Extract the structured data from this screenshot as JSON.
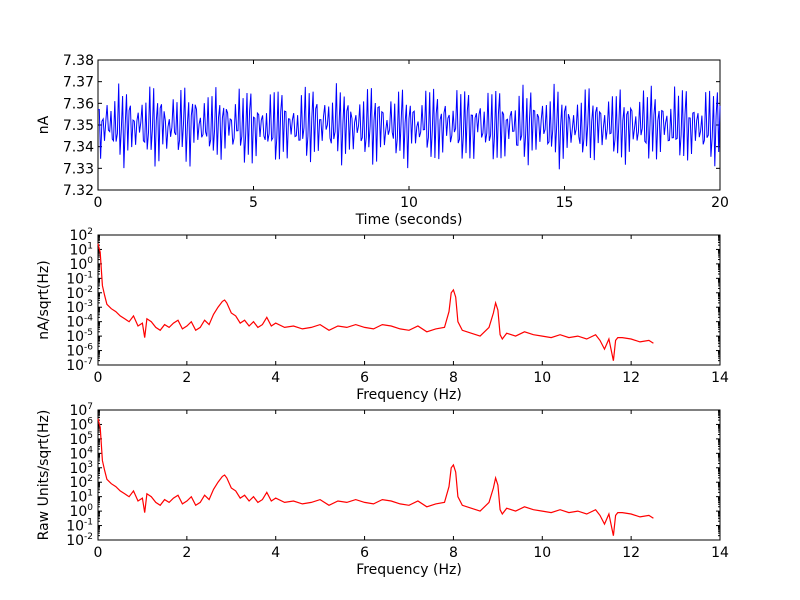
{
  "chart_data": [
    {
      "type": "line",
      "xlabel": "Time (seconds)",
      "ylabel": "nA",
      "xlim": [
        0,
        20
      ],
      "ylim": [
        7.32,
        7.38
      ],
      "xticks": [
        "0",
        "5",
        "10",
        "15",
        "20"
      ],
      "yticks": [
        "7.32",
        "7.33",
        "7.34",
        "7.35",
        "7.36",
        "7.37",
        "7.38"
      ],
      "color": "#0000ff",
      "grid": false,
      "signal": {
        "center": 7.35,
        "components": [
          {
            "freq_hz": 8.0,
            "amplitude": 0.012
          },
          {
            "freq_hz": 9.0,
            "amplitude": 0.006
          },
          {
            "freq_hz": 2.85,
            "amplitude": 0.0025
          }
        ],
        "min_observed": 7.3235,
        "max_observed": 7.3755
      }
    },
    {
      "type": "line",
      "scale_y": "log",
      "xlabel": "Frequency (Hz)",
      "ylabel": "nA/sqrt(Hz)",
      "xlim": [
        0,
        14
      ],
      "ylim_exp": [
        -7,
        2
      ],
      "xticks": [
        "0",
        "2",
        "4",
        "6",
        "8",
        "10",
        "12",
        "14"
      ],
      "ytick_exponents": [
        "-7",
        "-6",
        "-5",
        "-4",
        "-3",
        "-2",
        "-1",
        "0",
        "1",
        "2"
      ],
      "ytick_base": "10",
      "color": "#ff0000",
      "grid": false,
      "x": [
        0.0,
        0.05,
        0.1,
        0.15,
        0.2,
        0.3,
        0.4,
        0.5,
        0.6,
        0.7,
        0.8,
        0.9,
        1.0,
        1.05,
        1.1,
        1.2,
        1.3,
        1.4,
        1.5,
        1.6,
        1.7,
        1.8,
        1.9,
        2.0,
        2.1,
        2.2,
        2.3,
        2.4,
        2.5,
        2.6,
        2.7,
        2.8,
        2.85,
        2.9,
        3.0,
        3.1,
        3.2,
        3.3,
        3.4,
        3.5,
        3.6,
        3.7,
        3.8,
        3.9,
        4.0,
        4.2,
        4.4,
        4.6,
        4.8,
        5.0,
        5.2,
        5.4,
        5.6,
        5.8,
        6.0,
        6.2,
        6.4,
        6.6,
        6.8,
        7.0,
        7.2,
        7.4,
        7.6,
        7.8,
        7.9,
        7.95,
        8.0,
        8.05,
        8.1,
        8.2,
        8.4,
        8.6,
        8.8,
        8.9,
        8.95,
        9.0,
        9.05,
        9.1,
        9.2,
        9.4,
        9.6,
        9.8,
        10.0,
        10.2,
        10.4,
        10.6,
        10.8,
        11.0,
        11.2,
        11.3,
        11.4,
        11.5,
        11.6,
        11.65,
        11.7,
        11.8,
        12.0,
        12.2,
        12.4,
        12.5
      ],
      "y_exp": [
        1.4,
        0.8,
        -1.5,
        -2.2,
        -2.8,
        -3.1,
        -3.3,
        -3.6,
        -3.8,
        -4.0,
        -3.6,
        -4.3,
        -4.1,
        -5.1,
        -3.8,
        -4.0,
        -4.4,
        -4.6,
        -4.2,
        -4.4,
        -4.1,
        -3.9,
        -4.5,
        -4.3,
        -4.0,
        -4.6,
        -4.4,
        -3.9,
        -4.2,
        -3.5,
        -3.0,
        -2.6,
        -2.5,
        -2.7,
        -3.4,
        -3.6,
        -4.1,
        -3.9,
        -4.3,
        -4.0,
        -4.4,
        -4.2,
        -3.7,
        -4.3,
        -4.1,
        -4.4,
        -4.3,
        -4.5,
        -4.4,
        -4.2,
        -4.6,
        -4.3,
        -4.4,
        -4.2,
        -4.4,
        -4.5,
        -4.2,
        -4.3,
        -4.5,
        -4.6,
        -4.3,
        -4.7,
        -4.5,
        -4.4,
        -3.3,
        -2.0,
        -1.8,
        -2.3,
        -4.0,
        -4.6,
        -4.8,
        -5.0,
        -4.4,
        -3.4,
        -2.7,
        -3.2,
        -4.9,
        -5.2,
        -4.8,
        -5.0,
        -4.7,
        -4.9,
        -5.0,
        -5.1,
        -4.9,
        -5.1,
        -5.0,
        -5.2,
        -4.9,
        -5.3,
        -5.9,
        -5.2,
        -6.7,
        -5.3,
        -5.1,
        -5.1,
        -5.2,
        -5.4,
        -5.3,
        -5.5
      ]
    },
    {
      "type": "line",
      "scale_y": "log",
      "xlabel": "Frequency (Hz)",
      "ylabel": "Raw Units/sqrt(Hz)",
      "xlim": [
        0,
        14
      ],
      "ylim_exp": [
        -2,
        7
      ],
      "xticks": [
        "0",
        "2",
        "4",
        "6",
        "8",
        "10",
        "12",
        "14"
      ],
      "ytick_exponents": [
        "-2",
        "-1",
        "0",
        "1",
        "2",
        "3",
        "4",
        "5",
        "6",
        "7"
      ],
      "ytick_base": "10",
      "color": "#ff0000",
      "grid": false,
      "x": [
        0.0,
        0.05,
        0.1,
        0.15,
        0.2,
        0.3,
        0.4,
        0.5,
        0.6,
        0.7,
        0.8,
        0.9,
        1.0,
        1.05,
        1.1,
        1.2,
        1.3,
        1.4,
        1.5,
        1.6,
        1.7,
        1.8,
        1.9,
        2.0,
        2.1,
        2.2,
        2.3,
        2.4,
        2.5,
        2.6,
        2.7,
        2.8,
        2.85,
        2.9,
        3.0,
        3.1,
        3.2,
        3.3,
        3.4,
        3.5,
        3.6,
        3.7,
        3.8,
        3.9,
        4.0,
        4.2,
        4.4,
        4.6,
        4.8,
        5.0,
        5.2,
        5.4,
        5.6,
        5.8,
        6.0,
        6.2,
        6.4,
        6.6,
        6.8,
        7.0,
        7.2,
        7.4,
        7.6,
        7.8,
        7.9,
        7.95,
        8.0,
        8.05,
        8.1,
        8.2,
        8.4,
        8.6,
        8.8,
        8.9,
        8.95,
        9.0,
        9.05,
        9.1,
        9.2,
        9.4,
        9.6,
        9.8,
        10.0,
        10.2,
        10.4,
        10.6,
        10.8,
        11.0,
        11.2,
        11.3,
        11.4,
        11.5,
        11.6,
        11.65,
        11.7,
        11.8,
        12.0,
        12.2,
        12.4,
        12.5
      ],
      "y_exp": [
        6.4,
        5.8,
        3.5,
        2.8,
        2.2,
        1.9,
        1.7,
        1.4,
        1.2,
        1.0,
        1.4,
        0.7,
        0.9,
        -0.1,
        1.2,
        1.0,
        0.6,
        0.4,
        0.8,
        0.6,
        0.9,
        1.1,
        0.5,
        0.7,
        1.0,
        0.4,
        0.6,
        1.1,
        0.8,
        1.5,
        2.0,
        2.4,
        2.5,
        2.3,
        1.6,
        1.4,
        0.9,
        1.1,
        0.7,
        1.0,
        0.6,
        0.8,
        1.3,
        0.7,
        0.9,
        0.6,
        0.7,
        0.5,
        0.6,
        0.8,
        0.4,
        0.7,
        0.6,
        0.8,
        0.6,
        0.5,
        0.8,
        0.7,
        0.5,
        0.4,
        0.7,
        0.3,
        0.5,
        0.6,
        1.7,
        3.0,
        3.2,
        2.7,
        1.0,
        0.4,
        0.2,
        0.0,
        0.6,
        1.6,
        2.3,
        1.8,
        0.1,
        -0.2,
        0.2,
        0.0,
        0.3,
        0.1,
        0.0,
        -0.1,
        0.1,
        -0.1,
        0.0,
        -0.2,
        0.1,
        -0.3,
        -0.9,
        -0.2,
        -1.7,
        -0.3,
        -0.1,
        -0.1,
        -0.2,
        -0.4,
        -0.3,
        -0.5
      ]
    }
  ]
}
